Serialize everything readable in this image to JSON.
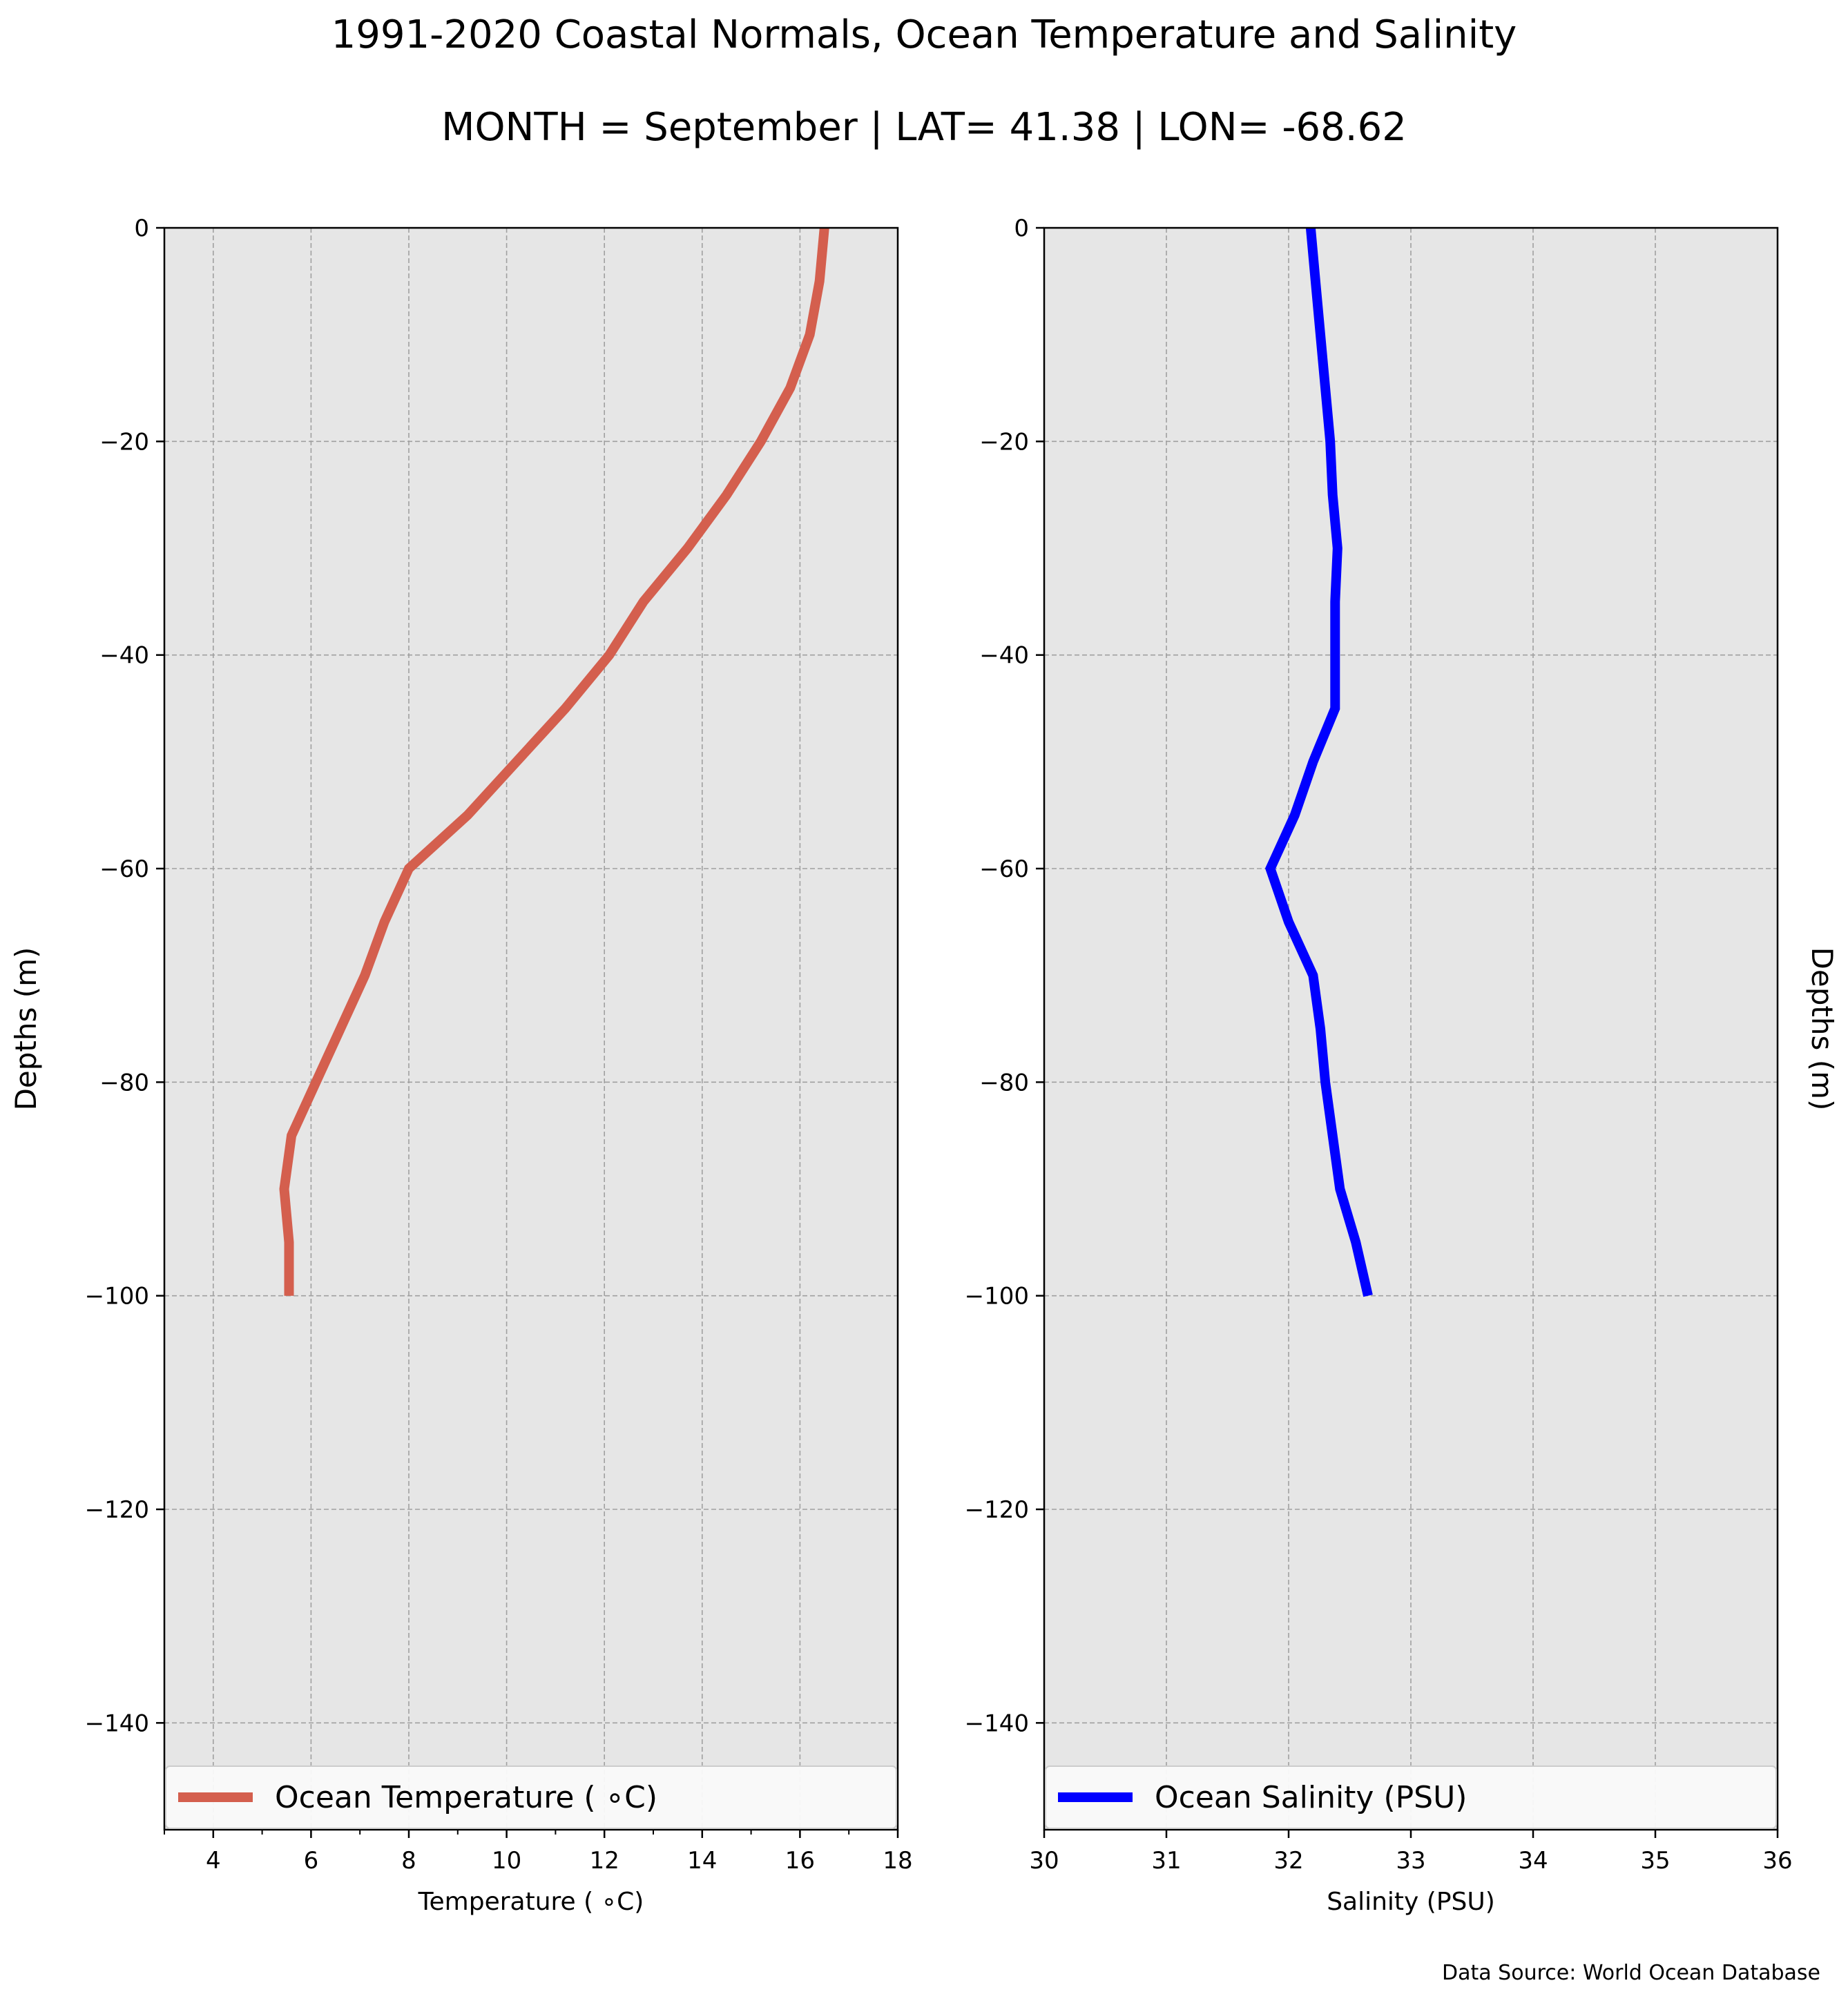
{
  "title": "1991-2020 Coastal Normals, Ocean Temperature and Salinity",
  "subtitle": "MONTH = September | LAT= 41.38 | LON= -68.62",
  "source": "Data Source: World Ocean Database",
  "chart_data": [
    {
      "type": "line",
      "xlabel": "Temperature ( ∘C)",
      "ylabel": "Depths (m)",
      "xlim": [
        3,
        18
      ],
      "ylim": [
        -150,
        0
      ],
      "xticks": [
        "4",
        "6",
        "8",
        "10",
        "12",
        "14",
        "16",
        "18"
      ],
      "xtick_values": [
        4,
        6,
        8,
        10,
        12,
        14,
        16,
        18
      ],
      "yticks": [
        "0",
        "−20",
        "−40",
        "−60",
        "−80",
        "−100",
        "−120",
        "−140"
      ],
      "ytick_values": [
        0,
        -20,
        -40,
        -60,
        -80,
        -100,
        -120,
        -140
      ],
      "grid": true,
      "legend_position": "bottom",
      "ylabel_side": "left",
      "series": [
        {
          "name": "Ocean Temperature ( ∘C)",
          "color": "#d45f4e",
          "x": [
            16.5,
            16.4,
            16.2,
            15.8,
            15.2,
            14.5,
            13.7,
            12.8,
            12.1,
            11.2,
            10.2,
            9.2,
            8.0,
            7.5,
            7.1,
            6.6,
            6.1,
            5.6,
            5.45,
            5.55,
            5.55
          ],
          "y": [
            0,
            -5,
            -10,
            -15,
            -20,
            -25,
            -30,
            -35,
            -40,
            -45,
            -50,
            -55,
            -60,
            -65,
            -70,
            -75,
            -80,
            -85,
            -90,
            -95,
            -100
          ]
        }
      ]
    },
    {
      "type": "line",
      "xlabel": "Salinity (PSU)",
      "ylabel": "Depths (m)",
      "xlim": [
        30,
        36
      ],
      "ylim": [
        -150,
        0
      ],
      "xticks": [
        "30",
        "31",
        "32",
        "33",
        "34",
        "35",
        "36"
      ],
      "xtick_values": [
        30,
        31,
        32,
        33,
        34,
        35,
        36
      ],
      "yticks": [
        "0",
        "−20",
        "−40",
        "−60",
        "−80",
        "−100",
        "−120",
        "−140"
      ],
      "ytick_values": [
        0,
        -20,
        -40,
        -60,
        -80,
        -100,
        -120,
        -140
      ],
      "grid": true,
      "legend_position": "bottom",
      "ylabel_side": "right",
      "series": [
        {
          "name": "Ocean Salinity (PSU)",
          "color": "#0000ff",
          "x": [
            32.18,
            32.22,
            32.26,
            32.3,
            32.34,
            32.36,
            32.4,
            32.38,
            32.38,
            32.38,
            32.2,
            32.05,
            31.85,
            32.0,
            32.2,
            32.26,
            32.3,
            32.36,
            32.42,
            32.55,
            32.65
          ],
          "y": [
            0,
            -5,
            -10,
            -15,
            -20,
            -25,
            -30,
            -35,
            -40,
            -45,
            -50,
            -55,
            -60,
            -65,
            -70,
            -75,
            -80,
            -85,
            -90,
            -95,
            -100
          ]
        }
      ]
    }
  ]
}
